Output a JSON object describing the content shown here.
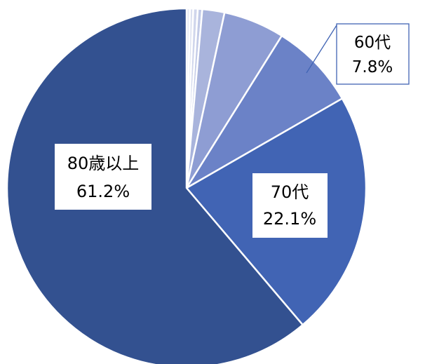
{
  "chart_data": {
    "type": "pie",
    "start_angle_deg": 0,
    "direction": "clockwise",
    "slices": [
      {
        "label": "",
        "value": 0.3,
        "color": "#e6e9f4"
      },
      {
        "label": "",
        "value": 0.3,
        "color": "#dbe0f0"
      },
      {
        "label": "",
        "value": 0.4,
        "color": "#d0d6ec"
      },
      {
        "label": "",
        "value": 0.4,
        "color": "#c3cbe7"
      },
      {
        "label": "",
        "value": 2.0,
        "color": "#a9b4dc"
      },
      {
        "label": "",
        "value": 5.5,
        "color": "#8e9dd3"
      },
      {
        "label": "60代",
        "value": 7.8,
        "percent_text": "7.8%",
        "color": "#6b82c7"
      },
      {
        "label": "70代",
        "value": 22.1,
        "percent_text": "22.1%",
        "color": "#4164b4"
      },
      {
        "label": "80歳以上",
        "value": 61.2,
        "percent_text": "61.2%",
        "color": "#335190"
      }
    ]
  }
}
